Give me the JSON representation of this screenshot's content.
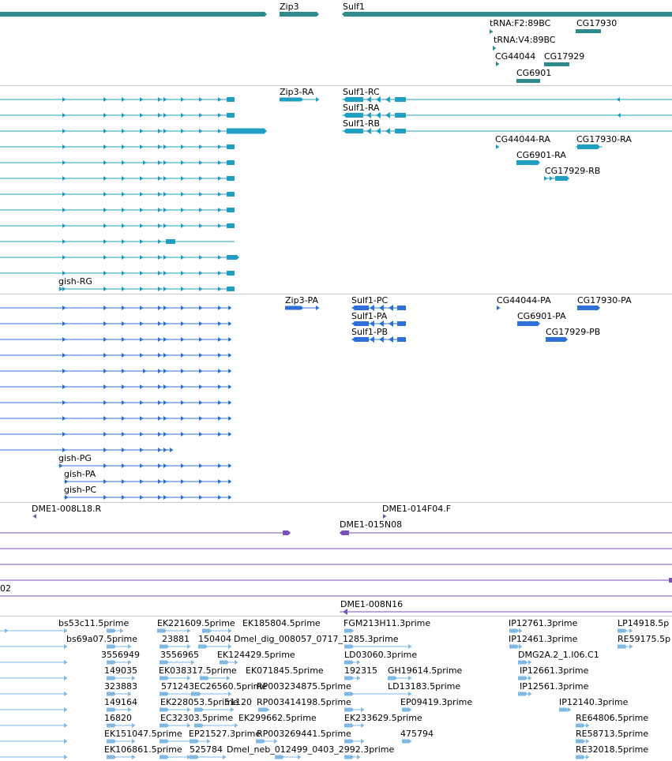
{
  "colors": {
    "gene": "#2e8b8b",
    "transcript": "#1f9fc4",
    "protein": "#2d6fd6",
    "bac": "#7a52b5",
    "est": "#7fb8e0",
    "separator": "#c8c8c8"
  },
  "icons": [
    "arrow-right-icon",
    "arrow-left-icon"
  ],
  "gene_track": {
    "labels": [
      "Zip3",
      "Sulf1",
      "tRNA:F2:89BC",
      "CG17930",
      "tRNA:V4:89BC",
      "CG44044",
      "CG17929",
      "CG6901"
    ]
  },
  "transcript_track": {
    "labels": [
      "Zip3-RA",
      "Sulf1-RC",
      "Sulf1-RA",
      "Sulf1-RB",
      "CG44044-RA",
      "CG17930-RA",
      "CG6901-RA",
      "CG17929-RB",
      "gish-RG"
    ]
  },
  "protein_track": {
    "labels": [
      "Zip3-PA",
      "Sulf1-PC",
      "CG44044-PA",
      "CG17930-PA",
      "Sulf1-PA",
      "CG6901-PA",
      "Sulf1-PB",
      "CG17929-PB",
      "gish-PG",
      "gish-PA",
      "gish-PC"
    ]
  },
  "bac_track": {
    "labels": [
      "DME1-008L18.R",
      "DME1-014F04.F",
      "DME1-015N08",
      "02",
      "DME1-008N16"
    ]
  },
  "est_track": {
    "labels": [
      "bs53c11.5prime",
      "EK221609.5prime",
      "EK185804.5prime",
      "FGM213H11.3prime",
      "IP12761.3prime",
      "LP14918.5p",
      "bs69a07.5prime",
      "23881",
      "150404",
      "Dmel_dig_008057_0717_1285.3prime",
      "IP12461.3prime",
      "RE59175.5p",
      "3556949",
      "3556965",
      "EK124429.5prime",
      "LD03060.3prime",
      "DMG2A.2_1.I06.C1",
      "149035",
      "EK038317.5prime",
      "EK071845.5prime",
      "192315",
      "GH19614.5prime",
      "IP12661.3prime",
      "323883",
      "571243",
      "EC26560.5prime",
      "RP003234875.5prime",
      "LD13183.5prime",
      "IP12561.3prime",
      "149164",
      "EK228053.5prime",
      "51120",
      "RP003414198.5prime",
      "EP09419.3prime",
      "IP12140.3prime",
      "16820",
      "EC32303.5prime",
      "EK299662.5prime",
      "EK233629.5prime",
      "RE64806.5prime",
      "EK151047.5prime",
      "EP21527.3prime",
      "RP003269441.5prime",
      "475794",
      "RE58713.5prime",
      "EK106861.5prime",
      "525784",
      "Dmel_neb_012499_0403_2992.3prime",
      "RE32018.5prime"
    ]
  }
}
